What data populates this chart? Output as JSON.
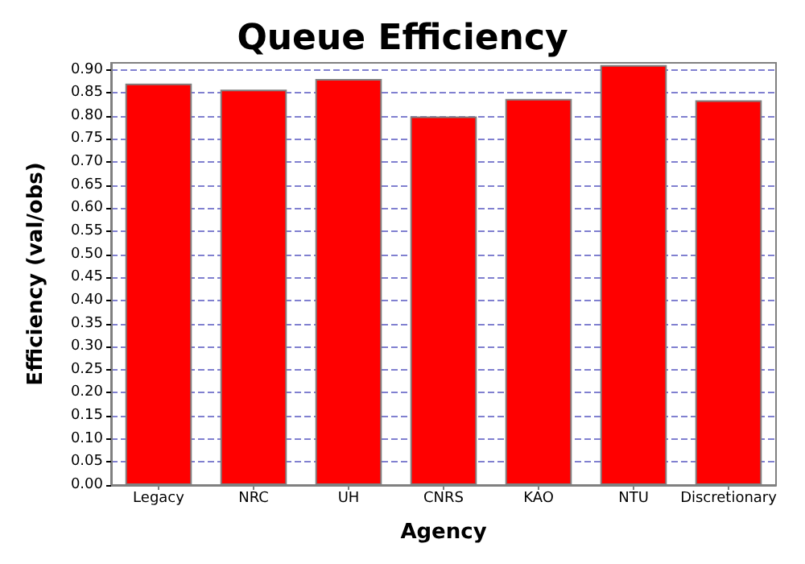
{
  "chart_data": {
    "type": "bar",
    "title": "Queue Efficiency",
    "xlabel": "Agency",
    "ylabel": "Efficiency (val/obs)",
    "categories": [
      "Legacy",
      "NRC",
      "UH",
      "CNRS",
      "KAO",
      "NTU",
      "Discretionary"
    ],
    "values": [
      0.87,
      0.857,
      0.88,
      0.799,
      0.837,
      0.91,
      0.834
    ],
    "color": "#ff0000",
    "ylim": [
      0,
      0.915
    ],
    "yticks": [
      {
        "value": 0,
        "label": "0.00"
      },
      {
        "value": 0.05,
        "label": "0.05"
      },
      {
        "value": 0.1,
        "label": "0.10"
      },
      {
        "value": 0.15,
        "label": "0.15"
      },
      {
        "value": 0.2,
        "label": "0.20"
      },
      {
        "value": 0.25,
        "label": "0.25"
      },
      {
        "value": 0.3,
        "label": "0.30"
      },
      {
        "value": 0.35,
        "label": "0.35"
      },
      {
        "value": 0.4,
        "label": "0.40"
      },
      {
        "value": 0.45,
        "label": "0.45"
      },
      {
        "value": 0.5,
        "label": "0.50"
      },
      {
        "value": 0.55,
        "label": "0.55"
      },
      {
        "value": 0.6,
        "label": "0.60"
      },
      {
        "value": 0.65,
        "label": "0.65"
      },
      {
        "value": 0.7,
        "label": "0.70"
      },
      {
        "value": 0.75,
        "label": "0.75"
      },
      {
        "value": 0.8,
        "label": "0.80"
      },
      {
        "value": 0.85,
        "label": "0.85"
      },
      {
        "value": 0.9,
        "label": "0.90"
      }
    ],
    "grid": "y"
  }
}
